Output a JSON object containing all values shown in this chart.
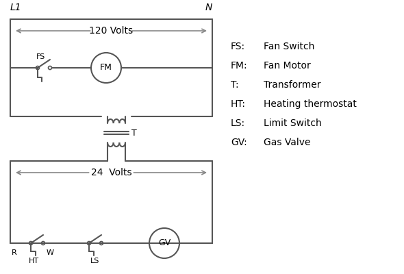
{
  "bg_color": "#ffffff",
  "line_color": "#555555",
  "text_color": "#000000",
  "legend_items": [
    [
      "FS:",
      "Fan Switch"
    ],
    [
      "FM:",
      "Fan Motor"
    ],
    [
      "T:",
      "Transformer"
    ],
    [
      "HT:",
      "Heating thermostat"
    ],
    [
      "LS:",
      "Limit Switch"
    ],
    [
      "GV:",
      "Gas Valve"
    ]
  ],
  "L1_label": "L1",
  "N_label": "N",
  "volts120_label": "120 Volts",
  "volts24_label": "24  Volts",
  "fs_label": "FS",
  "fm_label": "FM",
  "t_label": "T",
  "ht_label": "HT",
  "ls_label": "LS",
  "gv_label": "GV",
  "r_label": "R",
  "w_label": "W"
}
